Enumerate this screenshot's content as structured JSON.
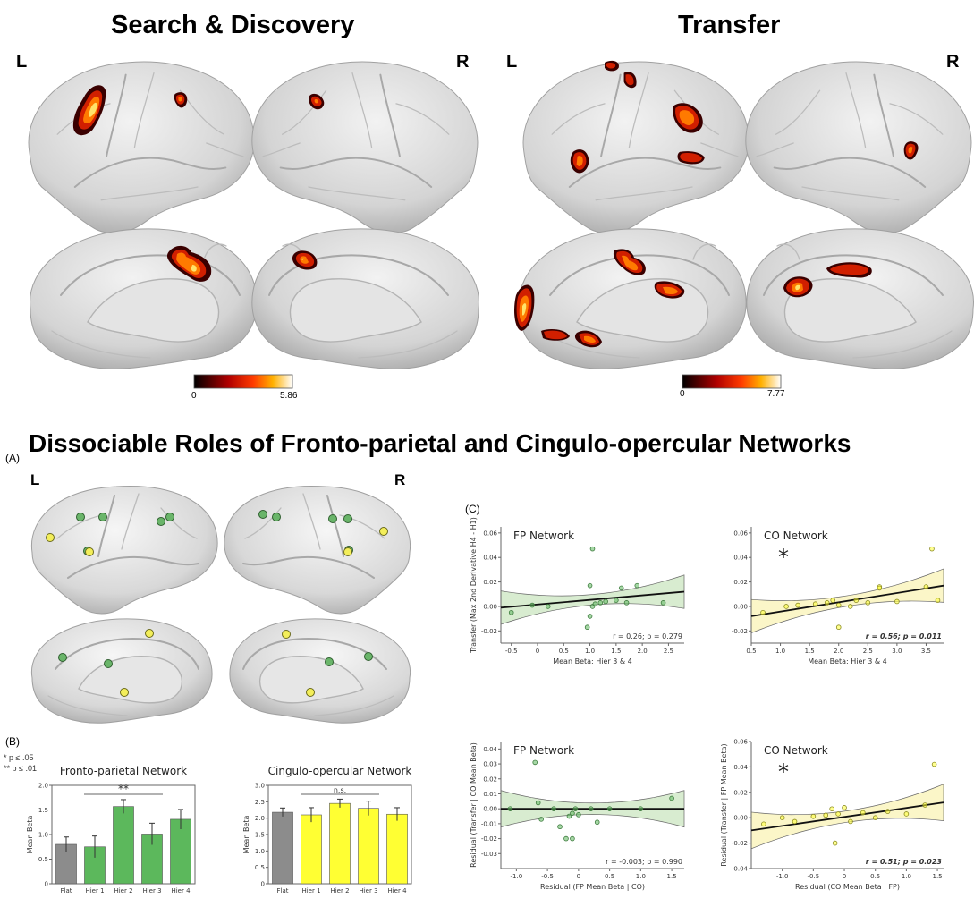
{
  "titles": {
    "search": "Search & Discovery",
    "transfer": "Transfer",
    "dissociable": "Dissociable Roles of Fronto-parietal and Cingulo-opercular Networks"
  },
  "hemi": {
    "left": "L",
    "right": "R"
  },
  "colorbars": {
    "search": {
      "min": "0",
      "max": "5.86"
    },
    "transfer": {
      "min": "0",
      "max": "7.77"
    }
  },
  "panels": {
    "a": "(A)",
    "b": "(B)",
    "c": "(C)"
  },
  "legend": {
    "p05": "*   p ≤ .05",
    "p01": "** p ≤ .01"
  },
  "colors": {
    "green": "#5cb85c",
    "yellow": "#ffff33",
    "gray": "#8c8c8c",
    "green_fill": "#d8ecd0",
    "yellow_fill": "#fbf6c8"
  },
  "chart_data": [
    {
      "type": "bar",
      "title": "Fronto-parietal Network",
      "ylabel": "Mean Beta",
      "categories": [
        "Flat",
        "Hier 1",
        "Hier 2",
        "Hier 3",
        "Hier 4"
      ],
      "values": [
        0.8,
        0.75,
        1.57,
        1.01,
        1.31
      ],
      "errors": [
        0.15,
        0.22,
        0.14,
        0.22,
        0.2
      ],
      "bar_colors": [
        "gray",
        "green",
        "green",
        "green",
        "green"
      ],
      "ylim": [
        0,
        2.0
      ],
      "yticks": [
        "0",
        "0.5",
        "1.0",
        "1.5",
        "2.0"
      ],
      "significance": {
        "from": "Hier 1",
        "to": "Hier 3",
        "label": "**"
      }
    },
    {
      "type": "bar",
      "title": "Cingulo-opercular Network",
      "ylabel": "Mean Beta",
      "categories": [
        "Flat",
        "Hier 1",
        "Hier 2",
        "Hier 3",
        "Hier 4"
      ],
      "values": [
        2.18,
        2.1,
        2.45,
        2.3,
        2.12
      ],
      "errors": [
        0.13,
        0.22,
        0.13,
        0.22,
        0.2
      ],
      "bar_colors": [
        "gray",
        "yellow",
        "yellow",
        "yellow",
        "yellow"
      ],
      "ylim": [
        0,
        3.0
      ],
      "yticks": [
        "0",
        "0.5",
        "1.0",
        "1.5",
        "2.0",
        "2.5",
        "3.0"
      ],
      "significance": {
        "from": "Hier 1",
        "to": "Hier 3",
        "label": "n.s."
      }
    },
    {
      "type": "scatter",
      "title": "FP Network",
      "color": "green",
      "ylabel": "Transfer (Max 2nd Derivative H4 - H1)",
      "xlabel": "Mean Beta: Hier 3 & 4",
      "xlim": [
        -0.7,
        2.8
      ],
      "ylim": [
        -0.03,
        0.065
      ],
      "xticks": [
        "-0.5",
        "0",
        "0.5",
        "1.0",
        "1.5",
        "2.0",
        "2.5"
      ],
      "yticks": [
        "-0.02",
        "0.00",
        "0.02",
        "0.04",
        "0.06"
      ],
      "x": [
        -0.5,
        -0.1,
        0.2,
        0.95,
        1.0,
        1.05,
        1.1,
        1.2,
        1.3,
        1.5,
        1.6,
        1.7,
        1.9,
        2.4,
        1.05,
        1.0
      ],
      "y": [
        -0.005,
        0.001,
        0.0,
        -0.017,
        -0.008,
        0.0,
        0.002,
        0.003,
        0.004,
        0.005,
        0.015,
        0.003,
        0.017,
        0.003,
        0.047,
        0.017
      ],
      "fit": {
        "x": [
          -0.7,
          2.8
        ],
        "y": [
          -0.001,
          0.012
        ]
      },
      "stat": "r = 0.26; p = 0.279",
      "significant": false
    },
    {
      "type": "scatter",
      "title": "CO Network",
      "color": "yellow",
      "ylabel": "",
      "xlabel": "Mean Beta: Hier 3 & 4",
      "xlim": [
        0.5,
        3.8
      ],
      "ylim": [
        -0.03,
        0.065
      ],
      "xticks": [
        "0.5",
        "1.0",
        "1.5",
        "2.0",
        "2.5",
        "3.0",
        "3.5"
      ],
      "yticks": [
        "-0.02",
        "0.00",
        "0.02",
        "0.04",
        "0.06"
      ],
      "x": [
        0.7,
        1.1,
        1.3,
        1.6,
        1.8,
        2.0,
        1.9,
        2.2,
        2.3,
        2.5,
        2.7,
        2.7,
        3.0,
        3.5,
        3.6,
        3.7,
        2.0
      ],
      "y": [
        -0.005,
        0.0,
        0.001,
        0.002,
        0.003,
        0.001,
        0.005,
        0.0,
        0.005,
        0.003,
        0.016,
        0.015,
        0.004,
        0.016,
        0.047,
        0.005,
        -0.017
      ],
      "fit": {
        "x": [
          0.5,
          3.8
        ],
        "y": [
          -0.008,
          0.017
        ]
      },
      "stat": "r = 0.56; p = 0.011",
      "significant": true,
      "star": "*"
    },
    {
      "type": "scatter",
      "title": "FP Network",
      "color": "green",
      "ylabel": "Residual (Transfer | CO Mean Beta)",
      "xlabel": "Residual (FP Mean Beta | CO)",
      "xlim": [
        -1.25,
        1.7
      ],
      "ylim": [
        -0.04,
        0.045
      ],
      "xticks": [
        "-1.0",
        "-0.5",
        "0",
        "0.5",
        "1.0",
        "1.5"
      ],
      "yticks": [
        "-0.03",
        "-0.02",
        "-0.01",
        "0.00",
        "0.01",
        "0.02",
        "0.03",
        "0.04"
      ],
      "x": [
        -1.1,
        -0.7,
        -0.6,
        -0.4,
        -0.3,
        -0.2,
        -0.15,
        -0.1,
        -0.05,
        0.0,
        0.2,
        0.3,
        0.5,
        1.0,
        1.5,
        -0.65,
        -0.1
      ],
      "y": [
        0.0,
        0.031,
        -0.007,
        0.0,
        -0.012,
        -0.02,
        -0.005,
        -0.003,
        0.0,
        -0.004,
        0.0,
        -0.009,
        0.0,
        0.0,
        0.007,
        0.004,
        -0.02
      ],
      "fit": {
        "x": [
          -1.25,
          1.7
        ],
        "y": [
          0.0,
          0.0
        ]
      },
      "stat": "r = -0.003; p = 0.990",
      "significant": false
    },
    {
      "type": "scatter",
      "title": "CO Network",
      "color": "yellow",
      "ylabel": "Residual (Transfer | FP Mean Beta)",
      "xlabel": "Residual (CO Mean Beta | FP)",
      "xlim": [
        -1.5,
        1.6
      ],
      "ylim": [
        -0.04,
        0.06
      ],
      "xticks": [
        "-1.0",
        "-0.5",
        "0",
        "0.5",
        "1.0",
        "1.5"
      ],
      "yticks": [
        "-0.04",
        "-0.02",
        "0.00",
        "0.02",
        "0.04",
        "0.06"
      ],
      "x": [
        -1.3,
        -1.0,
        -0.8,
        -0.5,
        -0.3,
        -0.2,
        -0.1,
        0.0,
        0.1,
        0.3,
        0.5,
        0.7,
        1.0,
        1.3,
        1.45,
        -0.15
      ],
      "y": [
        -0.005,
        0.0,
        -0.003,
        0.001,
        0.002,
        0.007,
        0.003,
        0.008,
        -0.003,
        0.004,
        0.0,
        0.005,
        0.003,
        0.01,
        0.042,
        -0.02
      ],
      "fit": {
        "x": [
          -1.5,
          1.6
        ],
        "y": [
          -0.01,
          0.012
        ]
      },
      "stat": "r = 0.51; p = 0.023",
      "significant": true,
      "star": "*"
    }
  ]
}
